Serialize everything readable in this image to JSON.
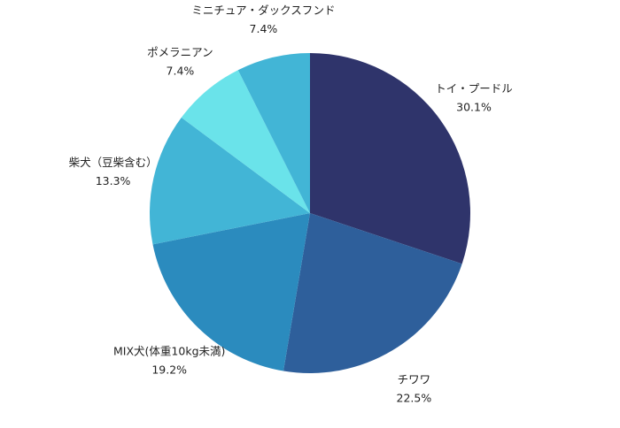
{
  "chart_data": {
    "type": "pie",
    "title": "",
    "start_angle_deg": 0,
    "direction": "clockwise",
    "slices": [
      {
        "label": "トイ・プードル",
        "value": 30.1,
        "value_label": "30.1%",
        "color": "#2f346b"
      },
      {
        "label": "チワワ",
        "value": 22.5,
        "value_label": "22.5%",
        "color": "#2e5f9b"
      },
      {
        "label": "MIX犬(体重10kg未満)",
        "value": 19.2,
        "value_label": "19.2%",
        "color": "#2b8bbe"
      },
      {
        "label": "柴犬（豆柴含む）",
        "value": 13.3,
        "value_label": "13.3%",
        "color": "#42b5d6"
      },
      {
        "label": "ポメラニアン",
        "value": 7.4,
        "value_label": "7.4%",
        "color": "#6ae3ea"
      },
      {
        "label": "ミニチュア・ダックスフンド",
        "value": 7.4,
        "value_label": "7.4%",
        "color": "#42b5d6"
      }
    ]
  }
}
